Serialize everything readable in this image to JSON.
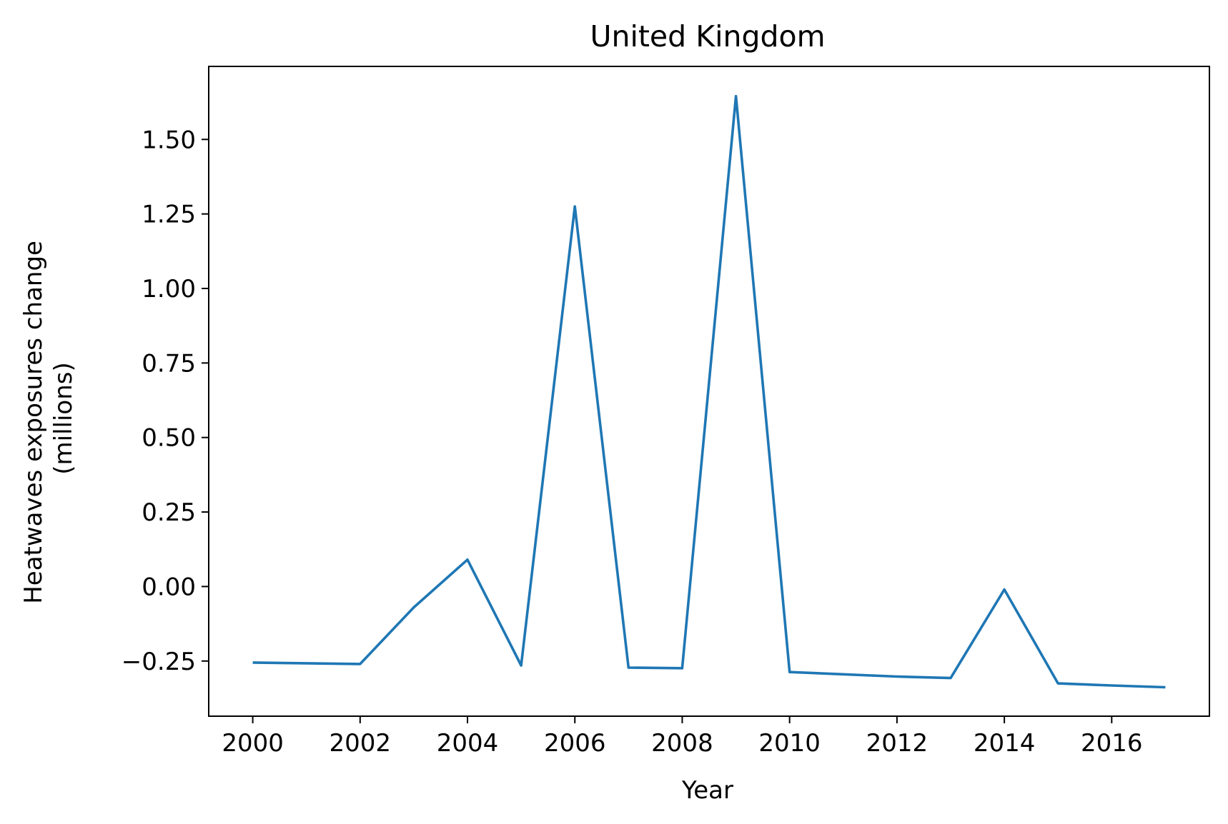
{
  "chart_data": {
    "type": "line",
    "title": "United Kingdom",
    "xlabel": "Year",
    "ylabel_lines": [
      "Heatwaves exposures change",
      "(millions)"
    ],
    "x": [
      2000,
      2002,
      2003,
      2004,
      2005,
      2006,
      2007,
      2008,
      2009,
      2010,
      2012,
      2013,
      2014,
      2015,
      2016,
      2017
    ],
    "series": [
      {
        "color": "#1f77b4",
        "values": [
          -0.255,
          -0.26,
          -0.07,
          0.09,
          -0.265,
          1.275,
          -0.272,
          -0.274,
          1.645,
          -0.287,
          -0.302,
          -0.307,
          -0.01,
          -0.325,
          -0.332,
          -0.338
        ]
      }
    ],
    "xlim": [
      1999.18,
      2017.82
    ],
    "ylim": [
      -0.435,
      1.745
    ],
    "xticks": [
      2000,
      2002,
      2004,
      2006,
      2008,
      2010,
      2012,
      2014,
      2016
    ],
    "xtick_labels": [
      "2000",
      "2002",
      "2004",
      "2006",
      "2008",
      "2010",
      "2012",
      "2014",
      "2016"
    ],
    "yticks": [
      -0.25,
      0.0,
      0.25,
      0.5,
      0.75,
      1.0,
      1.25,
      1.5
    ],
    "ytick_labels": [
      "−0.25",
      "0.00",
      "0.25",
      "0.50",
      "0.75",
      "1.00",
      "1.25",
      "1.50"
    ],
    "grid": false,
    "legend": false
  }
}
